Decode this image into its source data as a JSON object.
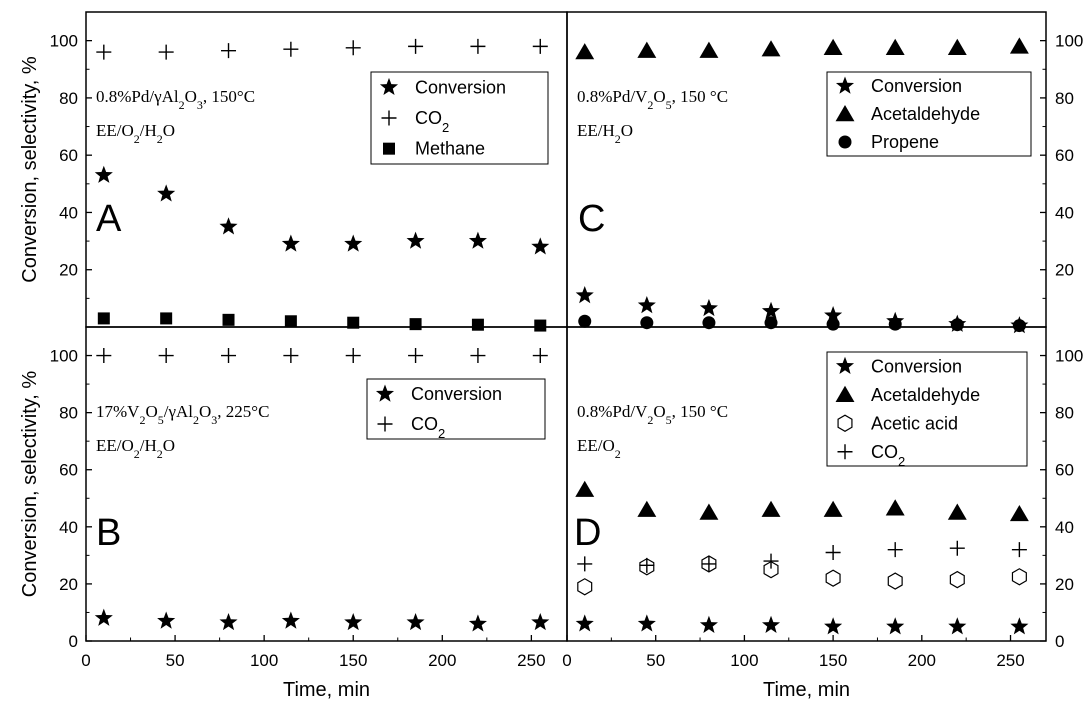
{
  "chart_data": [
    {
      "panel": "A",
      "type": "scatter",
      "annotation": [
        "0.8%Pd/γAl₂O₃, 150°C",
        "EE/O₂/H₂O"
      ],
      "ylabel": "Conversion, selectivity, %",
      "xlim": [
        0,
        270
      ],
      "ylim": [
        0,
        110
      ],
      "y_ticks": [
        20,
        40,
        60,
        80,
        100
      ],
      "grid": false,
      "legend": "top-right",
      "series": [
        {
          "name": "Conversion",
          "marker": "star",
          "x": [
            10,
            45,
            80,
            115,
            150,
            185,
            220,
            255
          ],
          "y": [
            53,
            46.5,
            35,
            29,
            29,
            30,
            30,
            28
          ]
        },
        {
          "name": "CO₂",
          "marker": "plus",
          "x": [
            10,
            45,
            80,
            115,
            150,
            185,
            220,
            255
          ],
          "y": [
            96,
            96,
            96.5,
            97,
            97.5,
            98,
            98,
            98
          ]
        },
        {
          "name": "Methane",
          "marker": "square",
          "x": [
            10,
            45,
            80,
            115,
            150,
            185,
            220,
            255
          ],
          "y": [
            3,
            3,
            2.5,
            2,
            1.5,
            1,
            0.8,
            0.5
          ]
        }
      ]
    },
    {
      "panel": "C",
      "type": "scatter",
      "annotation": [
        "0.8%Pd/V₂O₅, 150 °C",
        "EE/H₂O"
      ],
      "xlim": [
        0,
        270
      ],
      "ylim": [
        0,
        110
      ],
      "y_ticks": [
        20,
        40,
        60,
        80,
        100
      ],
      "grid": false,
      "legend": "top-right",
      "series": [
        {
          "name": "Conversion",
          "marker": "star",
          "x": [
            10,
            45,
            80,
            115,
            150,
            185,
            220,
            255
          ],
          "y": [
            11,
            7.5,
            6.5,
            5.5,
            4,
            2,
            1,
            0.5
          ]
        },
        {
          "name": "Acetaldehyde",
          "marker": "triangle",
          "x": [
            10,
            45,
            80,
            115,
            150,
            185,
            220,
            255
          ],
          "y": [
            96,
            96.5,
            96.5,
            97,
            97.5,
            97.5,
            97.5,
            98
          ]
        },
        {
          "name": "Propene",
          "marker": "circle",
          "x": [
            10,
            45,
            80,
            115,
            150,
            185,
            220,
            255
          ],
          "y": [
            2,
            1.5,
            1.5,
            1.5,
            1,
            1,
            0.8,
            0.5
          ]
        }
      ]
    },
    {
      "panel": "B",
      "type": "scatter",
      "annotation": [
        "17%V₂O₅/γAl₂O₃, 225°C",
        "EE/O₂/H₂O"
      ],
      "xlabel": "Time, min",
      "ylabel": "Conversion, selectivity, %",
      "xlim": [
        0,
        270
      ],
      "ylim": [
        0,
        110
      ],
      "x_ticks": [
        0,
        50,
        100,
        150,
        200,
        250
      ],
      "y_ticks": [
        0,
        20,
        40,
        60,
        80,
        100
      ],
      "grid": false,
      "legend": "top-right",
      "series": [
        {
          "name": "Conversion",
          "marker": "star",
          "x": [
            10,
            45,
            80,
            115,
            150,
            185,
            220,
            255
          ],
          "y": [
            8,
            7,
            6.5,
            7,
            6.5,
            6.5,
            6,
            6.5
          ]
        },
        {
          "name": "CO₂",
          "marker": "plus",
          "x": [
            10,
            45,
            80,
            115,
            150,
            185,
            220,
            255
          ],
          "y": [
            100,
            100,
            100,
            100,
            100,
            100,
            100,
            100
          ]
        }
      ]
    },
    {
      "panel": "D",
      "type": "scatter",
      "annotation": [
        "0.8%Pd/V₂O₅, 150 °C",
        "EE/O₂"
      ],
      "xlabel": "Time, min",
      "xlim": [
        0,
        270
      ],
      "ylim": [
        0,
        110
      ],
      "x_ticks": [
        0,
        50,
        100,
        150,
        200,
        250
      ],
      "y_ticks": [
        0,
        20,
        40,
        60,
        80,
        100
      ],
      "grid": false,
      "legend": "top-right",
      "series": [
        {
          "name": "Conversion",
          "marker": "star",
          "x": [
            10,
            45,
            80,
            115,
            150,
            185,
            220,
            255
          ],
          "y": [
            6,
            6,
            5.5,
            5.5,
            5,
            5,
            5,
            5
          ]
        },
        {
          "name": "Acetaldehyde",
          "marker": "triangle",
          "x": [
            10,
            45,
            80,
            115,
            150,
            185,
            220,
            255
          ],
          "y": [
            53,
            46,
            45,
            46,
            46,
            46.5,
            45,
            44.5
          ]
        },
        {
          "name": "Acetic acid",
          "marker": "hexagon",
          "x": [
            10,
            45,
            80,
            115,
            150,
            185,
            220,
            255
          ],
          "y": [
            19,
            26,
            27,
            25,
            22,
            21,
            21.5,
            22.5
          ]
        },
        {
          "name": "CO₂",
          "marker": "plus",
          "x": [
            10,
            45,
            80,
            115,
            150,
            185,
            220,
            255
          ],
          "y": [
            27,
            26.5,
            27,
            28,
            31,
            32,
            32.5,
            32
          ]
        }
      ]
    }
  ]
}
